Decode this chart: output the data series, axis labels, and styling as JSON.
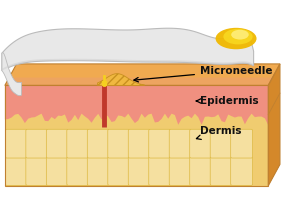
{
  "bg_color": "#ffffff",
  "skin_orange": "#F5B85A",
  "skin_orange_top": "#F0AA50",
  "skin_orange_side": "#D4882A",
  "skin_orange_bottom": "#C87820",
  "epidermis_color": "#E8826A",
  "epidermis_pink": "#F09080",
  "dermis_cell_fill": "#F5E0A0",
  "dermis_cell_border": "#DDB840",
  "dermis_base": "#F0CC70",
  "patch_top_color": "#DDDCDC",
  "patch_body_color": "#E8E8E8",
  "patch_edge_color": "#BBBBBB",
  "patch_inner_color": "#F5C860",
  "yellow_bright": "#F8E020",
  "needle_red": "#C0392B",
  "needle_yellow": "#F5D020",
  "dome_fill": "#F0B840",
  "dome_hatch_color": "#C89020",
  "label_microneedle": "Microneedle",
  "label_epidermis": "Epidermis",
  "label_dermis": "Dermis",
  "label_fontsize": 7.5,
  "arrow_color": "#111111"
}
